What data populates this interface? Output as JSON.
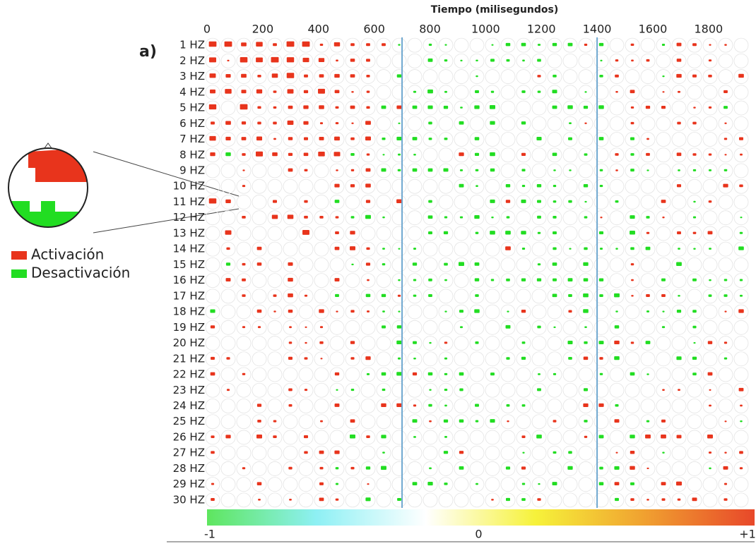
{
  "chart_data": {
    "type": "heatmap",
    "panel_label": "a)",
    "x_label": "Tiempo (milisegundos)",
    "xlim": [
      0,
      1950
    ],
    "xticks": [
      0,
      200,
      400,
      600,
      800,
      1000,
      1200,
      1400,
      1600,
      1800
    ],
    "categories": [
      "1 HZ",
      "2 HZ",
      "3 HZ",
      "4 HZ",
      "5 HZ",
      "6 HZ",
      "7 HZ",
      "8 HZ",
      "9 HZ",
      "10 HZ",
      "11 HZ",
      "12 HZ",
      "13 HZ",
      "14 HZ",
      "15 HZ",
      "16 HZ",
      "17 HZ",
      "18 HZ",
      "19 HZ",
      "20 HZ",
      "21 HZ",
      "22 HZ",
      "23 HZ",
      "24 HZ",
      "25 HZ",
      "26 HZ",
      "27 HZ",
      "28 HZ",
      "29 HZ",
      "30 HZ"
    ],
    "vlines": [
      700,
      1400
    ],
    "vline_color": "#6fa8d0",
    "colorbar": {
      "lim": [
        -1,
        1
      ],
      "ticks": [
        -1,
        0,
        {
          "value": 1,
          "label": "+1"
        }
      ],
      "colors": [
        "#5ee65e",
        "#8ef0f4",
        "#ffffff",
        "#f6f23a",
        "#f0a030",
        "#e8482a"
      ]
    },
    "legend": [
      {
        "name": "Activación",
        "color": "#e8341c"
      },
      {
        "name": "Desactivación",
        "color": "#22dd22"
      }
    ]
  }
}
